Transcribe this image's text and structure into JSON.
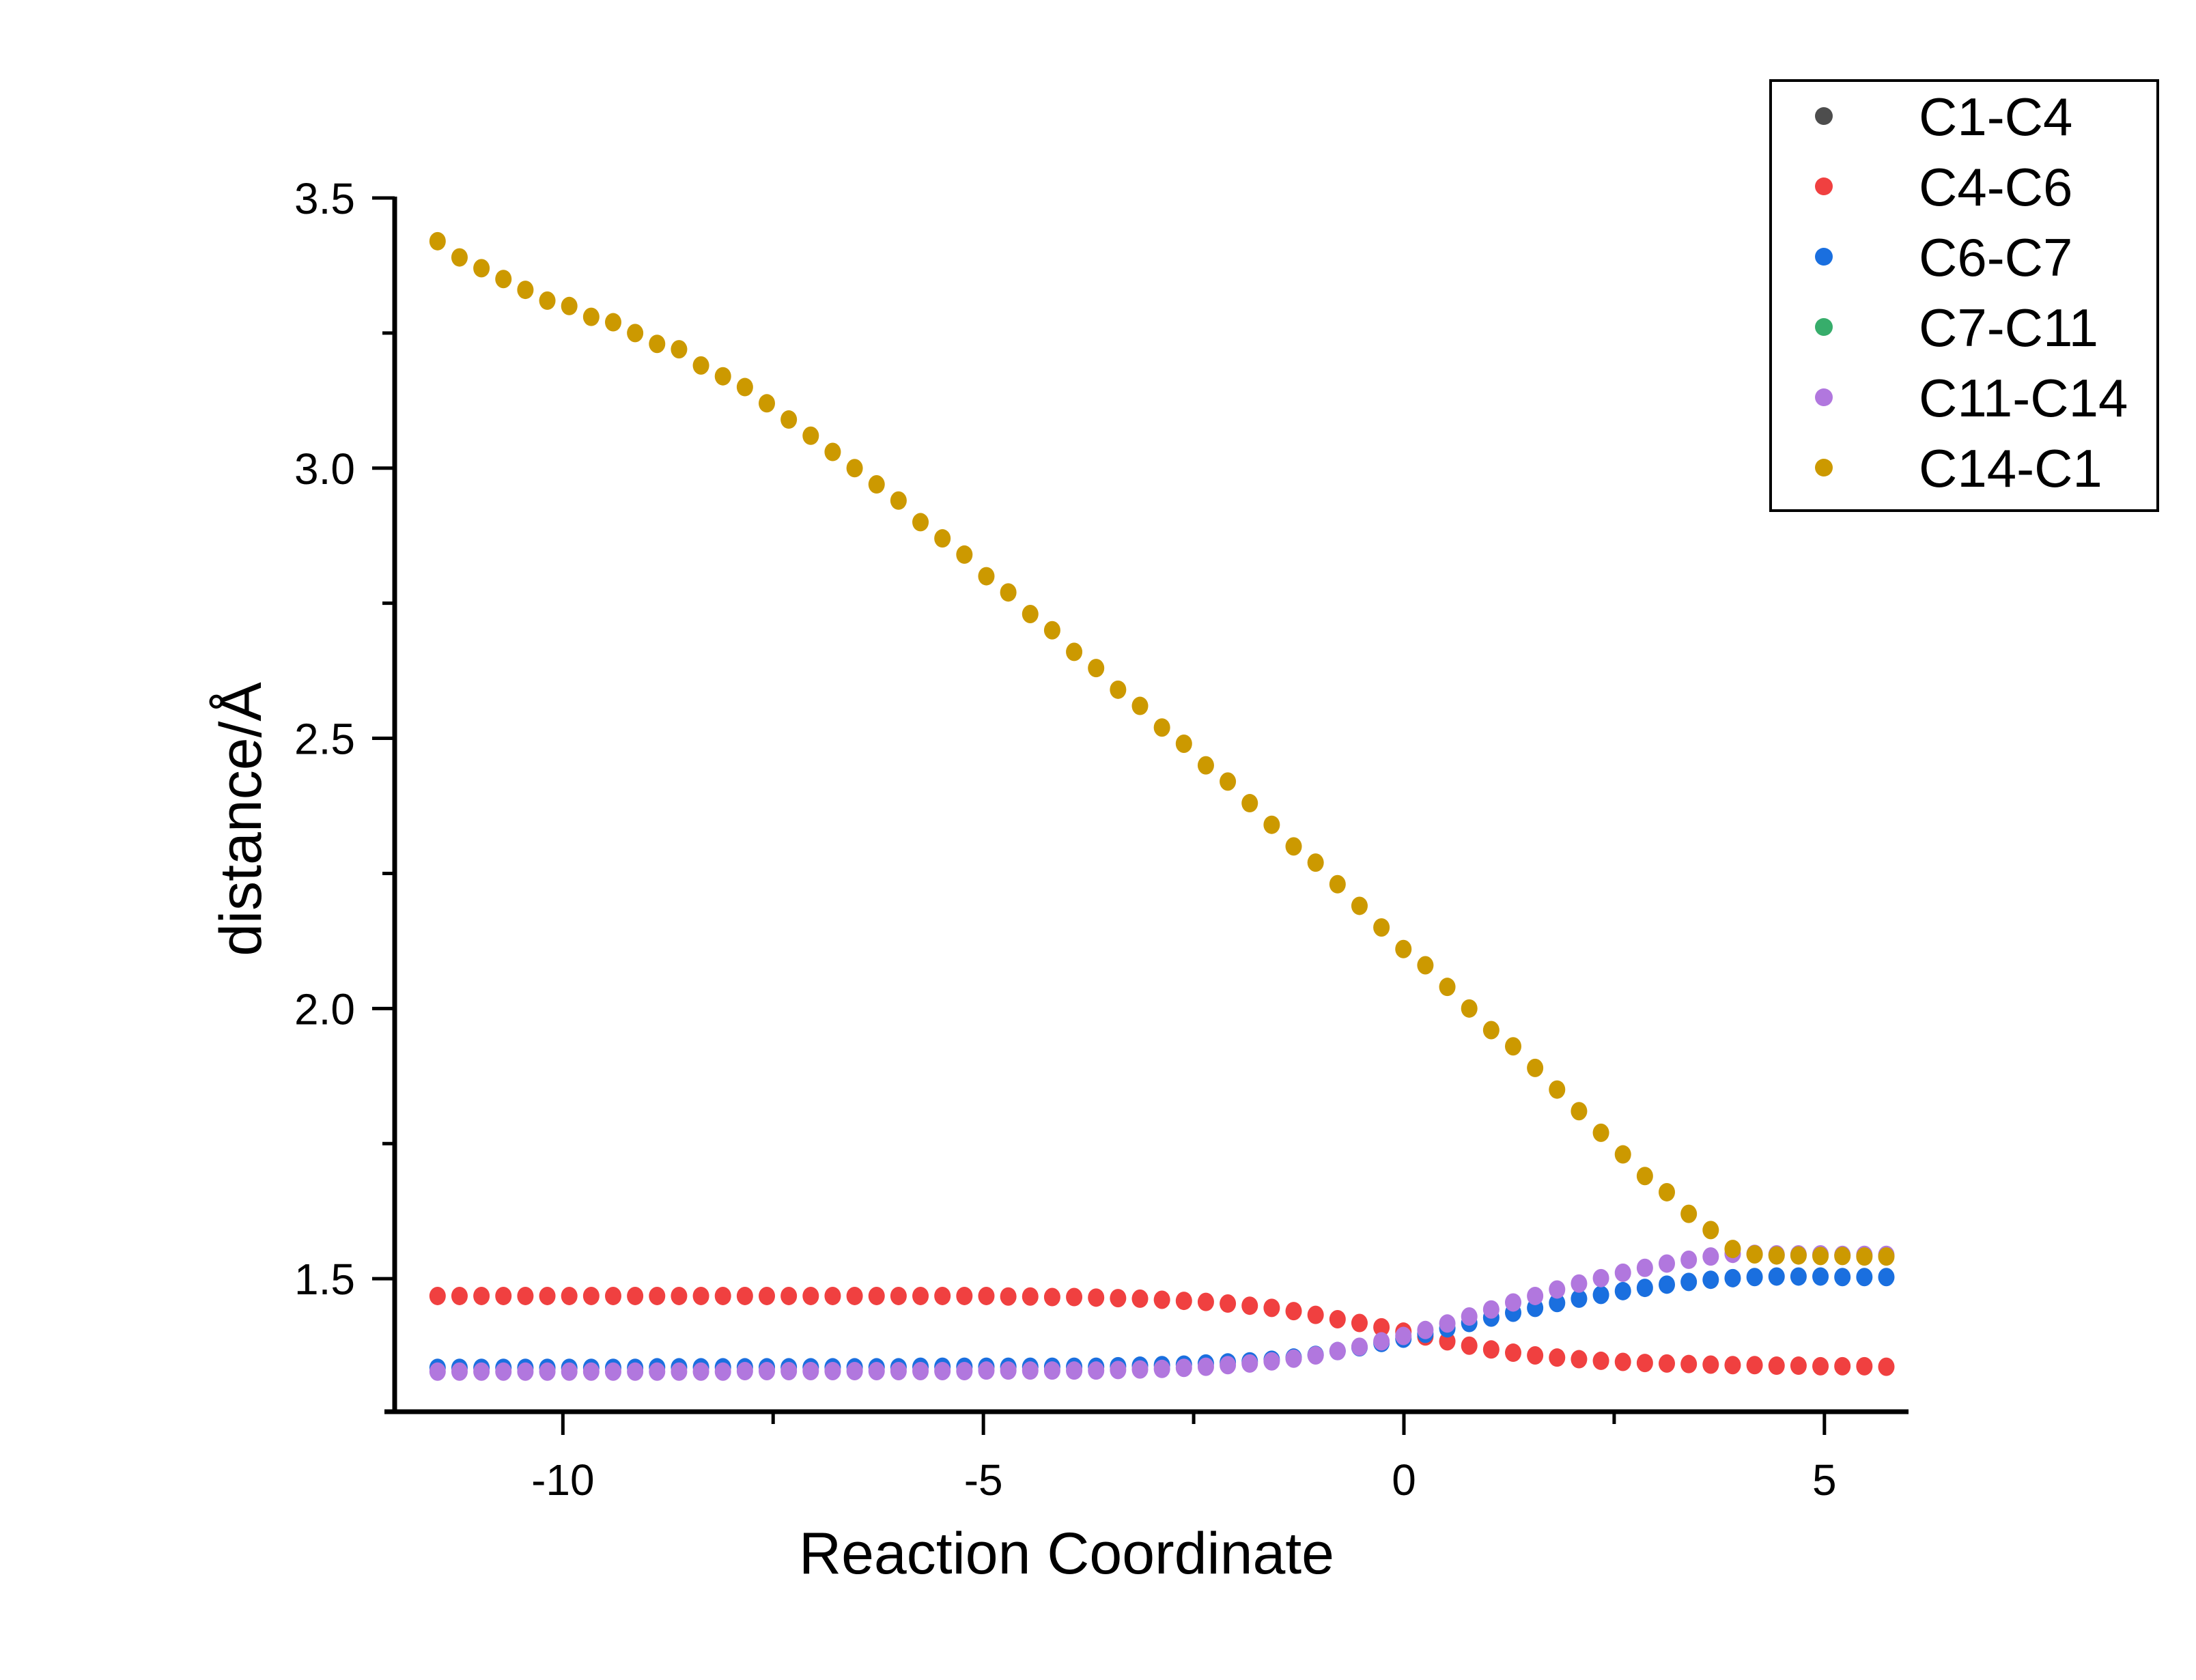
{
  "chart_data": {
    "type": "scatter",
    "title": "",
    "xlabel": "Reaction Coordinate",
    "ylabel": "distance/Å",
    "xlim": [
      -12,
      6
    ],
    "ylim": [
      1.25,
      3.5
    ],
    "xticks": [
      -10,
      -5,
      0,
      5
    ],
    "xtick_labels": [
      "-10",
      "-5",
      "0",
      "5"
    ],
    "xminor": [
      -7.5,
      -2.5,
      2.5
    ],
    "yticks": [
      1.5,
      2.0,
      2.5,
      3.0,
      3.5
    ],
    "ytick_labels": [
      "1.5",
      "2.0",
      "2.5",
      "3.0",
      "3.5"
    ],
    "yminor": [
      1.75,
      2.25,
      2.75,
      3.25
    ],
    "grid": false,
    "legend_position": "top-right",
    "x_start": -11.49,
    "x_step": 0.261,
    "n_points": 67,
    "series": [
      {
        "name": "C1-C4",
        "color": "#4d4d4d",
        "values": []
      },
      {
        "name": "C4-C6",
        "color": "#f04040",
        "values": [
          1.468,
          1.468,
          1.468,
          1.468,
          1.468,
          1.468,
          1.468,
          1.468,
          1.468,
          1.468,
          1.468,
          1.468,
          1.468,
          1.468,
          1.468,
          1.468,
          1.468,
          1.468,
          1.468,
          1.468,
          1.468,
          1.468,
          1.468,
          1.468,
          1.468,
          1.468,
          1.467,
          1.467,
          1.466,
          1.466,
          1.465,
          1.464,
          1.463,
          1.461,
          1.459,
          1.457,
          1.454,
          1.45,
          1.446,
          1.44,
          1.433,
          1.425,
          1.418,
          1.41,
          1.402,
          1.393,
          1.384,
          1.376,
          1.369,
          1.363,
          1.358,
          1.354,
          1.351,
          1.348,
          1.346,
          1.344,
          1.343,
          1.342,
          1.341,
          1.34,
          1.34,
          1.339,
          1.339,
          1.338,
          1.338,
          1.338,
          1.337
        ]
      },
      {
        "name": "C6-C7",
        "color": "#1a6fdf",
        "values": [
          1.335,
          1.335,
          1.335,
          1.335,
          1.335,
          1.335,
          1.335,
          1.335,
          1.335,
          1.335,
          1.336,
          1.336,
          1.336,
          1.336,
          1.336,
          1.336,
          1.336,
          1.336,
          1.336,
          1.336,
          1.336,
          1.336,
          1.337,
          1.337,
          1.337,
          1.337,
          1.337,
          1.337,
          1.337,
          1.337,
          1.337,
          1.338,
          1.339,
          1.34,
          1.341,
          1.343,
          1.345,
          1.347,
          1.35,
          1.354,
          1.359,
          1.366,
          1.373,
          1.381,
          1.389,
          1.398,
          1.408,
          1.418,
          1.428,
          1.437,
          1.446,
          1.455,
          1.463,
          1.47,
          1.477,
          1.483,
          1.489,
          1.494,
          1.498,
          1.501,
          1.503,
          1.504,
          1.504,
          1.504,
          1.503,
          1.503,
          1.503
        ]
      },
      {
        "name": "C7-C11",
        "color": "#37ad6b",
        "values": []
      },
      {
        "name": "C11-C14",
        "color": "#b177de",
        "values": [
          1.328,
          1.328,
          1.328,
          1.328,
          1.328,
          1.328,
          1.328,
          1.328,
          1.328,
          1.328,
          1.328,
          1.328,
          1.328,
          1.328,
          1.329,
          1.329,
          1.329,
          1.329,
          1.329,
          1.329,
          1.329,
          1.329,
          1.329,
          1.329,
          1.329,
          1.33,
          1.33,
          1.33,
          1.33,
          1.33,
          1.33,
          1.331,
          1.332,
          1.333,
          1.335,
          1.337,
          1.34,
          1.343,
          1.347,
          1.352,
          1.358,
          1.366,
          1.374,
          1.384,
          1.394,
          1.405,
          1.417,
          1.43,
          1.443,
          1.456,
          1.468,
          1.48,
          1.491,
          1.501,
          1.511,
          1.52,
          1.528,
          1.535,
          1.541,
          1.546,
          1.546,
          1.545,
          1.545,
          1.545,
          1.544,
          1.544,
          1.544
        ]
      },
      {
        "name": "C14-C1",
        "color": "#cc9900",
        "values": [
          3.42,
          3.39,
          3.37,
          3.35,
          3.33,
          3.31,
          3.3,
          3.28,
          3.27,
          3.25,
          3.23,
          3.22,
          3.19,
          3.17,
          3.15,
          3.12,
          3.09,
          3.06,
          3.03,
          3.0,
          2.97,
          2.94,
          2.9,
          2.87,
          2.84,
          2.8,
          2.77,
          2.73,
          2.7,
          2.66,
          2.63,
          2.59,
          2.56,
          2.52,
          2.49,
          2.45,
          2.42,
          2.38,
          2.34,
          2.3,
          2.27,
          2.23,
          2.19,
          2.15,
          2.11,
          2.08,
          2.04,
          2.0,
          1.96,
          1.93,
          1.89,
          1.85,
          1.81,
          1.77,
          1.73,
          1.69,
          1.66,
          1.62,
          1.59,
          1.555,
          1.545,
          1.543,
          1.543,
          1.542,
          1.542,
          1.541,
          1.541
        ]
      }
    ]
  }
}
